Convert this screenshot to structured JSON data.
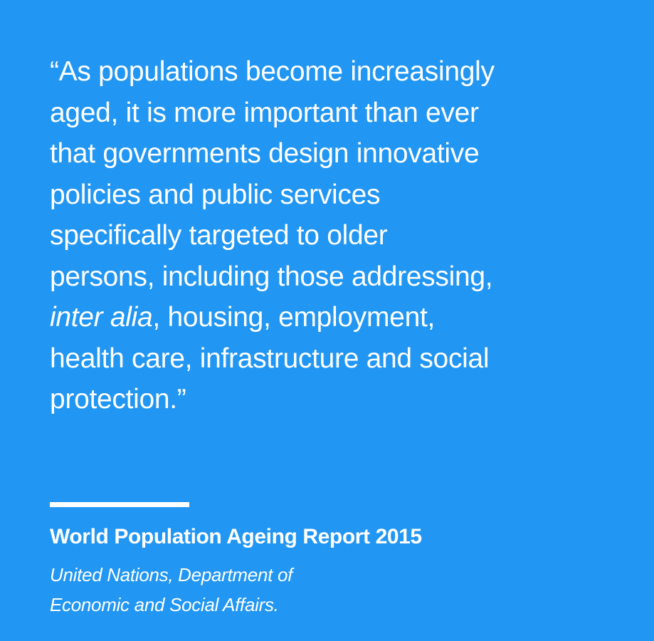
{
  "colors": {
    "background": "#2196f3",
    "text": "#ffffff"
  },
  "quote": {
    "lines": [
      "“As populations become increasingly",
      "aged, it is more important than ever",
      "that governments design innovative",
      "policies and public services",
      "specifically targeted to older",
      "persons, including those addressing,"
    ],
    "italic_phrase": "inter alia",
    "line7_rest": ", housing, employment,",
    "lines_after": [
      "health care, infrastructure and social",
      "protection.”"
    ]
  },
  "source": {
    "title": "World Population Ageing Report 2015",
    "org_lines": [
      "United Nations, Department of",
      "Economic and Social Affairs."
    ]
  }
}
